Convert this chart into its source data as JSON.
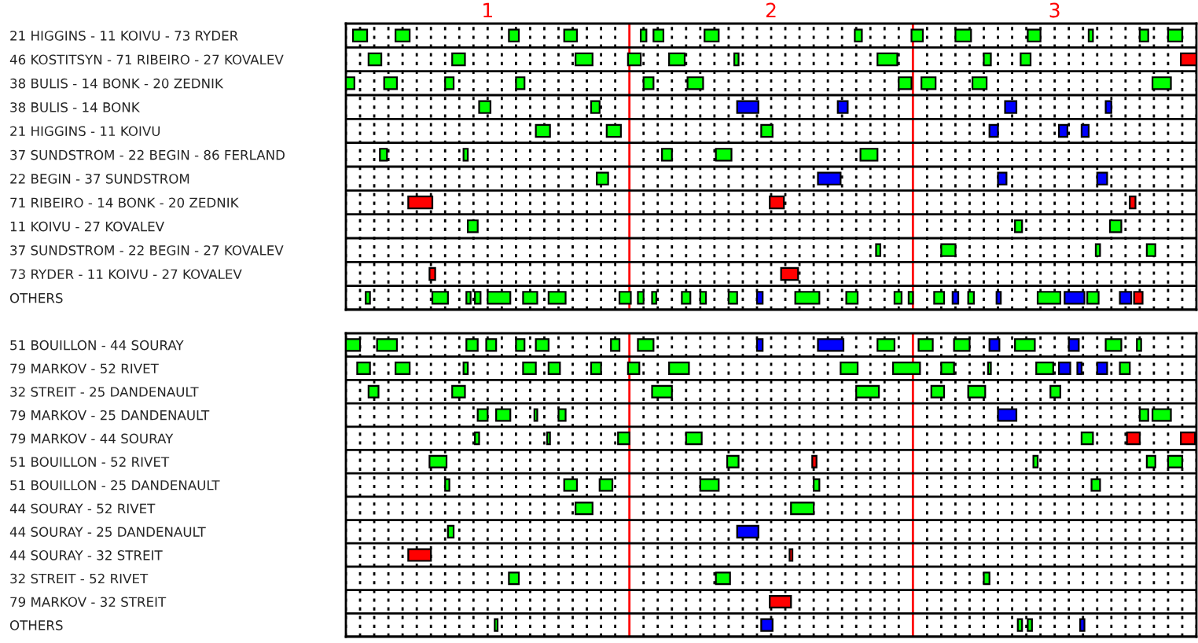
{
  "chart_data": [
    {
      "type": "bar",
      "orientation": "horizontal",
      "categories": [
        "21 HIGGINS - 11 KOIVU - 73 RYDER",
        "46 KOSTITSYN - 71 RIBEIRO - 27 KOVALEV",
        "38 BULIS - 14 BONK - 20 ZEDNIK",
        "38 BULIS - 14 BONK",
        "21 HIGGINS - 11 KOIVU",
        "37 SUNDSTROM - 22 BEGIN - 86 FERLAND",
        "22 BEGIN - 37 SUNDSTROM",
        "71 RIBEIRO - 14 BONK - 20 ZEDNIK",
        "11 KOIVU - 27 KOVALEV",
        "37 SUNDSTROM - 22 BEGIN - 27 KOVALEV",
        "73 RYDER - 11 KOIVU - 27 KOVALEV",
        "OTHERS"
      ],
      "series": [
        {
          "color": "#00ff00",
          "base": [
            0.525,
            0.58,
            0.5,
            0.97,
            1.17,
            0.62,
            1.385,
            null,
            0.93,
            2.37,
            null,
            0.57
          ],
          "values": [
            0.05,
            0.045,
            0.03,
            0.04,
            0.05,
            0.025,
            0.04,
            null,
            0.035,
            0.015,
            null,
            0.015
          ]
        },
        {
          "color": "#00ff00",
          "base": [
            0.675,
            0.875,
            0.635,
            1.365,
            1.42,
            0.915,
            null,
            null,
            2.86,
            2.6,
            null,
            0.805
          ],
          "values": [
            0.05,
            0.045,
            0.045,
            0.03,
            0.05,
            0.015,
            null,
            null,
            0.025,
            0.05,
            null,
            0.055
          ]
        },
        {
          "color": "#00ff00",
          "base": [
            1.075,
            1.31,
            0.85,
            null,
            1.965,
            1.615,
            null,
            null,
            3.195,
            3.145,
            null,
            0.925
          ],
          "values": [
            0.035,
            0.06,
            0.03,
            null,
            0.04,
            0.035,
            null,
            null,
            0.04,
            0.015,
            null,
            0.015
          ]
        },
        {
          "color": "#00ff00",
          "base": [
            1.27,
            1.495,
            1.1,
            null,
            null,
            1.805,
            null,
            null,
            null,
            3.325,
            null,
            0.955
          ],
          "values": [
            0.045,
            0.045,
            0.03,
            null,
            null,
            0.055,
            null,
            null,
            null,
            0.03,
            null,
            0.02
          ]
        },
        {
          "color": "#00ff00",
          "base": [
            1.54,
            1.64,
            1.55,
            null,
            null,
            2.315,
            null,
            null,
            null,
            null,
            null,
            1.0
          ],
          "values": [
            0.02,
            0.055,
            0.035,
            null,
            null,
            0.06,
            null,
            null,
            null,
            null,
            null,
            0.08
          ]
        },
        {
          "color": "#00ff00",
          "base": [
            1.585,
            1.87,
            1.705,
            null,
            null,
            null,
            null,
            null,
            null,
            null,
            null,
            1.125
          ],
          "values": [
            0.035,
            0.015,
            0.055,
            null,
            null,
            null,
            null,
            null,
            null,
            null,
            null,
            0.05
          ]
        },
        {
          "color": "#00ff00",
          "base": [
            1.765,
            2.375,
            2.45,
            null,
            null,
            null,
            null,
            null,
            null,
            null,
            null,
            1.215
          ],
          "values": [
            0.05,
            0.07,
            0.045,
            null,
            null,
            null,
            null,
            null,
            null,
            null,
            null,
            0.06
          ]
        },
        {
          "color": "#00ff00",
          "base": [
            2.295,
            2.75,
            2.53,
            null,
            null,
            null,
            null,
            null,
            null,
            null,
            null,
            1.465
          ],
          "values": [
            0.025,
            0.025,
            0.05,
            null,
            null,
            null,
            null,
            null,
            null,
            null,
            null,
            0.04
          ]
        },
        {
          "color": "#00ff00",
          "base": [
            2.495,
            2.88,
            2.71,
            null,
            null,
            null,
            null,
            null,
            null,
            null,
            null,
            1.53
          ],
          "values": [
            0.04,
            0.035,
            0.05,
            null,
            null,
            null,
            null,
            null,
            null,
            null,
            null,
            0.02
          ]
        },
        {
          "color": "#00ff00",
          "base": [
            2.65,
            null,
            3.345,
            null,
            null,
            null,
            null,
            null,
            null,
            null,
            null,
            1.58
          ],
          "values": [
            0.055,
            null,
            0.065,
            null,
            null,
            null,
            null,
            null,
            null,
            null,
            null,
            0.015
          ]
        },
        {
          "color": "#00ff00",
          "base": [
            2.905,
            null,
            null,
            null,
            null,
            null,
            null,
            null,
            null,
            null,
            null,
            1.685
          ],
          "values": [
            0.045,
            null,
            null,
            null,
            null,
            null,
            null,
            null,
            null,
            null,
            null,
            0.03
          ]
        },
        {
          "color": "#00ff00",
          "base": [
            3.12,
            null,
            null,
            null,
            null,
            null,
            null,
            null,
            null,
            null,
            null,
            1.75
          ],
          "values": [
            0.015,
            null,
            null,
            null,
            null,
            null,
            null,
            null,
            null,
            null,
            null,
            0.02
          ]
        },
        {
          "color": "#00ff00",
          "base": [
            3.3,
            null,
            null,
            null,
            null,
            null,
            null,
            null,
            null,
            null,
            null,
            1.85
          ],
          "values": [
            0.03,
            null,
            null,
            null,
            null,
            null,
            null,
            null,
            null,
            null,
            null,
            0.03
          ]
        },
        {
          "color": "#00ff00",
          "base": [
            3.4,
            null,
            null,
            null,
            null,
            null,
            null,
            null,
            null,
            null,
            null,
            2.085
          ],
          "values": [
            0.05,
            null,
            null,
            null,
            null,
            null,
            null,
            null,
            null,
            null,
            null,
            0.085
          ]
        },
        {
          "color": "#00ff00",
          "base": [
            null,
            null,
            null,
            null,
            null,
            null,
            null,
            null,
            null,
            null,
            null,
            2.265
          ],
          "values": [
            null,
            null,
            null,
            null,
            null,
            null,
            null,
            null,
            null,
            null,
            null,
            0.04
          ]
        },
        {
          "color": "#00ff00",
          "base": [
            null,
            null,
            null,
            null,
            null,
            null,
            null,
            null,
            null,
            null,
            null,
            2.435
          ],
          "values": [
            null,
            null,
            null,
            null,
            null,
            null,
            null,
            null,
            null,
            null,
            null,
            0.025
          ]
        },
        {
          "color": "#00ff00",
          "base": [
            null,
            null,
            null,
            null,
            null,
            null,
            null,
            null,
            null,
            null,
            null,
            2.485
          ],
          "values": [
            null,
            null,
            null,
            null,
            null,
            null,
            null,
            null,
            null,
            null,
            null,
            0.015
          ]
        },
        {
          "color": "#00ff00",
          "base": [
            null,
            null,
            null,
            null,
            null,
            null,
            null,
            null,
            null,
            null,
            null,
            2.575
          ],
          "values": [
            null,
            null,
            null,
            null,
            null,
            null,
            null,
            null,
            null,
            null,
            null,
            0.035
          ]
        },
        {
          "color": "#00ff00",
          "base": [
            null,
            null,
            null,
            null,
            null,
            null,
            null,
            null,
            null,
            null,
            null,
            2.695
          ],
          "values": [
            null,
            null,
            null,
            null,
            null,
            null,
            null,
            null,
            null,
            null,
            null,
            0.02
          ]
        },
        {
          "color": "#00ff00",
          "base": [
            null,
            null,
            null,
            null,
            null,
            null,
            null,
            null,
            null,
            null,
            null,
            2.94
          ],
          "values": [
            null,
            null,
            null,
            null,
            null,
            null,
            null,
            null,
            null,
            null,
            null,
            0.08
          ]
        },
        {
          "color": "#00ff00",
          "base": [
            null,
            null,
            null,
            null,
            null,
            null,
            null,
            null,
            null,
            null,
            null,
            3.115
          ],
          "values": [
            null,
            null,
            null,
            null,
            null,
            null,
            null,
            null,
            null,
            null,
            null,
            0.04
          ]
        },
        {
          "color": "#0000ff",
          "base": [
            null,
            null,
            null,
            1.88,
            2.77,
            null,
            2.165,
            null,
            null,
            null,
            null,
            1.95
          ],
          "values": [
            null,
            null,
            null,
            0.075,
            0.03,
            null,
            0.08,
            null,
            null,
            null,
            null,
            0.02
          ]
        },
        {
          "color": "#0000ff",
          "base": [
            null,
            null,
            null,
            2.235,
            3.015,
            null,
            2.8,
            null,
            null,
            null,
            null,
            2.64
          ],
          "values": [
            null,
            null,
            null,
            0.035,
            0.03,
            null,
            0.03,
            null,
            null,
            null,
            null,
            0.02
          ]
        },
        {
          "color": "#0000ff",
          "base": [
            null,
            null,
            null,
            2.825,
            3.095,
            null,
            3.15,
            null,
            null,
            null,
            null,
            2.795
          ],
          "values": [
            null,
            null,
            null,
            0.04,
            0.025,
            null,
            0.035,
            null,
            null,
            null,
            null,
            0.015
          ]
        },
        {
          "color": "#0000ff",
          "base": [
            null,
            null,
            null,
            3.18,
            null,
            null,
            null,
            null,
            null,
            null,
            null,
            3.035
          ],
          "values": [
            null,
            null,
            null,
            0.02,
            null,
            null,
            null,
            null,
            null,
            null,
            null,
            0.07
          ]
        },
        {
          "color": "#0000ff",
          "base": [
            null,
            null,
            null,
            null,
            null,
            null,
            null,
            null,
            null,
            null,
            null,
            3.23
          ],
          "values": [
            null,
            null,
            null,
            null,
            null,
            null,
            null,
            null,
            null,
            null,
            null,
            0.04
          ]
        },
        {
          "color": "#ff0000",
          "base": [
            null,
            3.445,
            null,
            null,
            null,
            null,
            null,
            0.72,
            null,
            null,
            0.795,
            3.28
          ],
          "values": [
            null,
            0.055,
            null,
            null,
            null,
            null,
            null,
            0.085,
            null,
            null,
            0.02,
            0.03
          ]
        },
        {
          "color": "#ff0000",
          "base": [
            null,
            null,
            null,
            null,
            null,
            null,
            null,
            1.995,
            null,
            null,
            2.035,
            null
          ],
          "values": [
            null,
            null,
            null,
            null,
            null,
            null,
            null,
            0.05,
            null,
            null,
            0.06,
            null
          ]
        },
        {
          "color": "#ff0000",
          "base": [
            null,
            null,
            null,
            null,
            null,
            null,
            null,
            3.265,
            null,
            null,
            null,
            null
          ],
          "values": [
            null,
            null,
            null,
            null,
            null,
            null,
            null,
            0.02,
            null,
            null,
            null,
            null
          ]
        }
      ],
      "xlim": [
        0.5,
        3.5
      ],
      "xticks": [
        {
          "value": 0.5,
          "label": null
        },
        {
          "value": 0.55,
          "label": null
        },
        {
          "value": 0.6,
          "label": null
        },
        {
          "value": 0.65,
          "label": null
        },
        {
          "value": 0.7,
          "label": null
        },
        {
          "value": 0.75,
          "label": null
        },
        {
          "value": 0.8,
          "label": null
        },
        {
          "value": 0.85,
          "label": null
        },
        {
          "value": 0.9,
          "label": null
        },
        {
          "value": 0.95,
          "label": null
        },
        1,
        {
          "value": 1.05,
          "label": null
        },
        {
          "value": 1.1,
          "label": null
        },
        {
          "value": 1.15,
          "label": null
        },
        {
          "value": 1.2,
          "label": null
        },
        {
          "value": 1.25,
          "label": null
        },
        {
          "value": 1.3,
          "label": null
        },
        {
          "value": 1.35,
          "label": null
        },
        {
          "value": 1.4,
          "label": null
        },
        {
          "value": 1.45,
          "label": null
        },
        {
          "value": 1.55,
          "label": null
        },
        {
          "value": 1.6,
          "label": null
        },
        {
          "value": 1.65,
          "label": null
        },
        {
          "value": 1.7,
          "label": null
        },
        {
          "value": 1.75,
          "label": null
        },
        {
          "value": 1.8,
          "label": null
        },
        {
          "value": 1.85,
          "label": null
        },
        {
          "value": 1.9,
          "label": null
        },
        {
          "value": 1.95,
          "label": null
        },
        2,
        {
          "value": 2.05,
          "label": null
        },
        {
          "value": 2.1,
          "label": null
        },
        {
          "value": 2.15,
          "label": null
        },
        {
          "value": 2.2,
          "label": null
        },
        {
          "value": 2.25,
          "label": null
        },
        {
          "value": 2.3,
          "label": null
        },
        {
          "value": 2.35,
          "label": null
        },
        {
          "value": 2.4,
          "label": null
        },
        {
          "value": 2.45,
          "label": null
        },
        {
          "value": 2.55,
          "label": null
        },
        {
          "value": 2.6,
          "label": null
        },
        {
          "value": 2.65,
          "label": null
        },
        {
          "value": 2.7,
          "label": null
        },
        {
          "value": 2.75,
          "label": null
        },
        {
          "value": 2.8,
          "label": null
        },
        {
          "value": 2.85,
          "label": null
        },
        {
          "value": 2.9,
          "label": null
        },
        {
          "value": 2.95,
          "label": null
        },
        3,
        {
          "value": 3.05,
          "label": null
        },
        {
          "value": 3.1,
          "label": null
        },
        {
          "value": 3.15,
          "label": null
        },
        {
          "value": 3.2,
          "label": null
        },
        {
          "value": 3.25,
          "label": null
        },
        {
          "value": 3.3,
          "label": null
        },
        {
          "value": 3.35,
          "label": null
        },
        {
          "value": 3.4,
          "label": null
        },
        {
          "value": 3.45,
          "label": null
        },
        {
          "value": 3.5,
          "label": null
        }
      ],
      "grid": "x",
      "ref_lines": [
        {
          "axis": "x",
          "value": 1.5,
          "color": "#ff0000"
        },
        {
          "axis": "x",
          "value": 2.5,
          "color": "#ff0000"
        }
      ]
    },
    {
      "type": "bar",
      "orientation": "horizontal",
      "categories": [
        "51 BOUILLON - 44 SOURAY",
        "79 MARKOV - 52 RIVET",
        "32 STREIT - 25 DANDENAULT",
        "79 MARKOV - 25 DANDENAULT",
        "79 MARKOV - 44 SOURAY",
        "51 BOUILLON - 52 RIVET",
        "51 BOUILLON - 25 DANDENAULT",
        "44 SOURAY - 52 RIVET",
        "44 SOURAY - 25 DANDENAULT",
        "44 SOURAY - 32 STREIT",
        "32 STREIT - 52 RIVET",
        "79 MARKOV - 32 STREIT",
        "OTHERS"
      ],
      "series": [
        {
          "color": "#00ff00",
          "base": [
            0.5,
            0.54,
            0.58,
            0.965,
            0.955,
            0.795,
            0.85,
            1.31,
            0.86,
            null,
            1.075,
            null,
            1.025
          ],
          "values": [
            0.05,
            0.045,
            0.035,
            0.035,
            0.015,
            0.06,
            0.015,
            0.06,
            0.02,
            null,
            0.035,
            null,
            0.01
          ]
        },
        {
          "color": "#00ff00",
          "base": [
            0.61,
            0.675,
            0.875,
            1.03,
            1.21,
            1.845,
            1.27,
            2.07,
            null,
            null,
            1.805,
            null,
            2.87
          ],
          "values": [
            0.07,
            0.05,
            0.045,
            0.05,
            0.01,
            0.04,
            0.045,
            0.08,
            null,
            null,
            0.05,
            null,
            0.015
          ]
        },
        {
          "color": "#00ff00",
          "base": [
            0.925,
            0.915,
            1.58,
            1.165,
            1.46,
            2.925,
            1.395,
            null,
            null,
            null,
            2.75,
            null,
            2.905
          ],
          "values": [
            0.04,
            0.015,
            0.07,
            0.01,
            0.04,
            0.015,
            0.045,
            null,
            null,
            null,
            0.02,
            null,
            0.015
          ]
        },
        {
          "color": "#00ff00",
          "base": [
            0.995,
            1.125,
            2.3,
            1.25,
            1.7,
            3.325,
            1.75,
            null,
            null,
            null,
            null,
            null,
            null
          ],
          "values": [
            0.035,
            0.045,
            0.08,
            0.025,
            0.055,
            0.03,
            0.065,
            null,
            null,
            null,
            null,
            null,
            null
          ]
        },
        {
          "color": "#00ff00",
          "base": [
            1.1,
            1.215,
            2.565,
            3.3,
            3.095,
            3.4,
            2.15,
            null,
            null,
            null,
            null,
            null,
            null
          ],
          "values": [
            0.03,
            0.04,
            0.045,
            0.03,
            0.04,
            0.05,
            0.02,
            null,
            null,
            null,
            null,
            null,
            null
          ]
        },
        {
          "color": "#00ff00",
          "base": [
            1.17,
            1.365,
            2.695,
            3.345,
            null,
            null,
            3.13,
            null,
            null,
            null,
            null,
            null,
            null
          ],
          "values": [
            0.045,
            0.035,
            0.06,
            0.065,
            null,
            null,
            0.03,
            null,
            null,
            null,
            null,
            null,
            null
          ]
        },
        {
          "color": "#00ff00",
          "base": [
            1.435,
            1.495,
            2.985,
            null,
            null,
            null,
            null,
            null,
            null,
            null,
            null,
            null,
            null
          ],
          "values": [
            0.03,
            0.04,
            0.035,
            null,
            null,
            null,
            null,
            null,
            null,
            null,
            null,
            null,
            null
          ]
        },
        {
          "color": "#00ff00",
          "base": [
            1.53,
            1.64,
            null,
            null,
            null,
            null,
            null,
            null,
            null,
            null,
            null,
            null,
            null
          ],
          "values": [
            0.055,
            0.07,
            null,
            null,
            null,
            null,
            null,
            null,
            null,
            null,
            null,
            null,
            null
          ]
        },
        {
          "color": "#00ff00",
          "base": [
            2.375,
            2.245,
            null,
            null,
            null,
            null,
            null,
            null,
            null,
            null,
            null,
            null,
            null
          ],
          "values": [
            0.06,
            0.06,
            null,
            null,
            null,
            null,
            null,
            null,
            null,
            null,
            null,
            null,
            null
          ]
        },
        {
          "color": "#00ff00",
          "base": [
            2.52,
            2.43,
            null,
            null,
            null,
            null,
            null,
            null,
            null,
            null,
            null,
            null,
            null
          ],
          "values": [
            0.05,
            0.095,
            null,
            null,
            null,
            null,
            null,
            null,
            null,
            null,
            null,
            null,
            null
          ]
        },
        {
          "color": "#00ff00",
          "base": [
            2.645,
            2.6,
            null,
            null,
            null,
            null,
            null,
            null,
            null,
            null,
            null,
            null,
            null
          ],
          "values": [
            0.055,
            0.045,
            null,
            null,
            null,
            null,
            null,
            null,
            null,
            null,
            null,
            null,
            null
          ]
        },
        {
          "color": "#00ff00",
          "base": [
            2.86,
            2.765,
            null,
            null,
            null,
            null,
            null,
            null,
            null,
            null,
            null,
            null,
            null
          ],
          "values": [
            0.07,
            0.01,
            null,
            null,
            null,
            null,
            null,
            null,
            null,
            null,
            null,
            null,
            null
          ]
        },
        {
          "color": "#00ff00",
          "base": [
            3.18,
            2.935,
            null,
            null,
            null,
            null,
            null,
            null,
            null,
            null,
            null,
            null,
            null
          ],
          "values": [
            0.055,
            0.06,
            null,
            null,
            null,
            null,
            null,
            null,
            null,
            null,
            null,
            null,
            null
          ]
        },
        {
          "color": "#00ff00",
          "base": [
            3.29,
            3.23,
            null,
            null,
            null,
            null,
            null,
            null,
            null,
            null,
            null,
            null,
            null
          ],
          "values": [
            0.015,
            0.035,
            null,
            null,
            null,
            null,
            null,
            null,
            null,
            null,
            null,
            null,
            null
          ]
        },
        {
          "color": "#0000ff",
          "base": [
            1.95,
            3.015,
            null,
            2.8,
            null,
            null,
            null,
            null,
            1.88,
            null,
            null,
            null,
            1.965
          ],
          "values": [
            0.02,
            0.04,
            null,
            0.065,
            null,
            null,
            null,
            null,
            0.075,
            null,
            null,
            null,
            0.04
          ]
        },
        {
          "color": "#0000ff",
          "base": [
            2.165,
            3.08,
            null,
            null,
            null,
            null,
            null,
            null,
            null,
            null,
            null,
            null,
            3.09
          ],
          "values": [
            0.09,
            0.015,
            null,
            null,
            null,
            null,
            null,
            null,
            null,
            null,
            null,
            null,
            0.015
          ]
        },
        {
          "color": "#0000ff",
          "base": [
            2.77,
            3.15,
            null,
            null,
            null,
            null,
            null,
            null,
            null,
            null,
            null,
            null,
            null
          ],
          "values": [
            0.035,
            0.035,
            null,
            null,
            null,
            null,
            null,
            null,
            null,
            null,
            null,
            null,
            null
          ]
        },
        {
          "color": "#0000ff",
          "base": [
            3.05,
            null,
            null,
            null,
            null,
            null,
            null,
            null,
            null,
            null,
            null,
            null,
            null
          ],
          "values": [
            0.035,
            null,
            null,
            null,
            null,
            null,
            null,
            null,
            null,
            null,
            null,
            null,
            null
          ]
        },
        {
          "color": "#ff0000",
          "base": [
            null,
            null,
            null,
            null,
            3.255,
            2.145,
            null,
            null,
            null,
            0.72,
            null,
            1.995,
            null
          ],
          "values": [
            null,
            null,
            null,
            null,
            0.045,
            0.015,
            null,
            null,
            null,
            0.08,
            null,
            0.075,
            null
          ]
        },
        {
          "color": "#ff0000",
          "base": [
            null,
            null,
            null,
            null,
            3.445,
            null,
            null,
            null,
            null,
            2.065,
            null,
            null,
            null
          ],
          "values": [
            null,
            null,
            null,
            null,
            0.05,
            null,
            null,
            null,
            null,
            0.01,
            null,
            null,
            null
          ]
        }
      ],
      "xlim": [
        0.5,
        3.5
      ],
      "xticks": [
        {
          "value": 0.5,
          "label": null
        },
        {
          "value": 0.55,
          "label": null
        },
        {
          "value": 0.6,
          "label": null
        },
        {
          "value": 0.65,
          "label": null
        },
        {
          "value": 0.7,
          "label": null
        },
        {
          "value": 0.75,
          "label": null
        },
        {
          "value": 0.8,
          "label": null
        },
        {
          "value": 0.85,
          "label": null
        },
        {
          "value": 0.9,
          "label": null
        },
        {
          "value": 0.95,
          "label": null
        },
        1,
        {
          "value": 1.05,
          "label": null
        },
        {
          "value": 1.1,
          "label": null
        },
        {
          "value": 1.15,
          "label": null
        },
        {
          "value": 1.2,
          "label": null
        },
        {
          "value": 1.25,
          "label": null
        },
        {
          "value": 1.3,
          "label": null
        },
        {
          "value": 1.35,
          "label": null
        },
        {
          "value": 1.4,
          "label": null
        },
        {
          "value": 1.45,
          "label": null
        },
        {
          "value": 1.55,
          "label": null
        },
        {
          "value": 1.6,
          "label": null
        },
        {
          "value": 1.65,
          "label": null
        },
        {
          "value": 1.7,
          "label": null
        },
        {
          "value": 1.75,
          "label": null
        },
        {
          "value": 1.8,
          "label": null
        },
        {
          "value": 1.85,
          "label": null
        },
        {
          "value": 1.9,
          "label": null
        },
        {
          "value": 1.95,
          "label": null
        },
        2,
        {
          "value": 2.05,
          "label": null
        },
        {
          "value": 2.1,
          "label": null
        },
        {
          "value": 2.15,
          "label": null
        },
        {
          "value": 2.2,
          "label": null
        },
        {
          "value": 2.25,
          "label": null
        },
        {
          "value": 2.3,
          "label": null
        },
        {
          "value": 2.35,
          "label": null
        },
        {
          "value": 2.4,
          "label": null
        },
        {
          "value": 2.45,
          "label": null
        },
        {
          "value": 2.55,
          "label": null
        },
        {
          "value": 2.6,
          "label": null
        },
        {
          "value": 2.65,
          "label": null
        },
        {
          "value": 2.7,
          "label": null
        },
        {
          "value": 2.75,
          "label": null
        },
        {
          "value": 2.8,
          "label": null
        },
        {
          "value": 2.85,
          "label": null
        },
        {
          "value": 2.9,
          "label": null
        },
        {
          "value": 2.95,
          "label": null
        },
        3,
        {
          "value": 3.05,
          "label": null
        },
        {
          "value": 3.1,
          "label": null
        },
        {
          "value": 3.15,
          "label": null
        },
        {
          "value": 3.2,
          "label": null
        },
        {
          "value": 3.25,
          "label": null
        },
        {
          "value": 3.3,
          "label": null
        },
        {
          "value": 3.35,
          "label": null
        },
        {
          "value": 3.4,
          "label": null
        },
        {
          "value": 3.45,
          "label": null
        },
        {
          "value": 3.5,
          "label": null
        }
      ],
      "tick_labels": "y",
      "grid": "x",
      "ref_lines": [
        {
          "axis": "x",
          "value": 1.5,
          "color": "#ff0000"
        },
        {
          "axis": "x",
          "value": 2.5,
          "color": "#ff0000"
        }
      ]
    }
  ]
}
